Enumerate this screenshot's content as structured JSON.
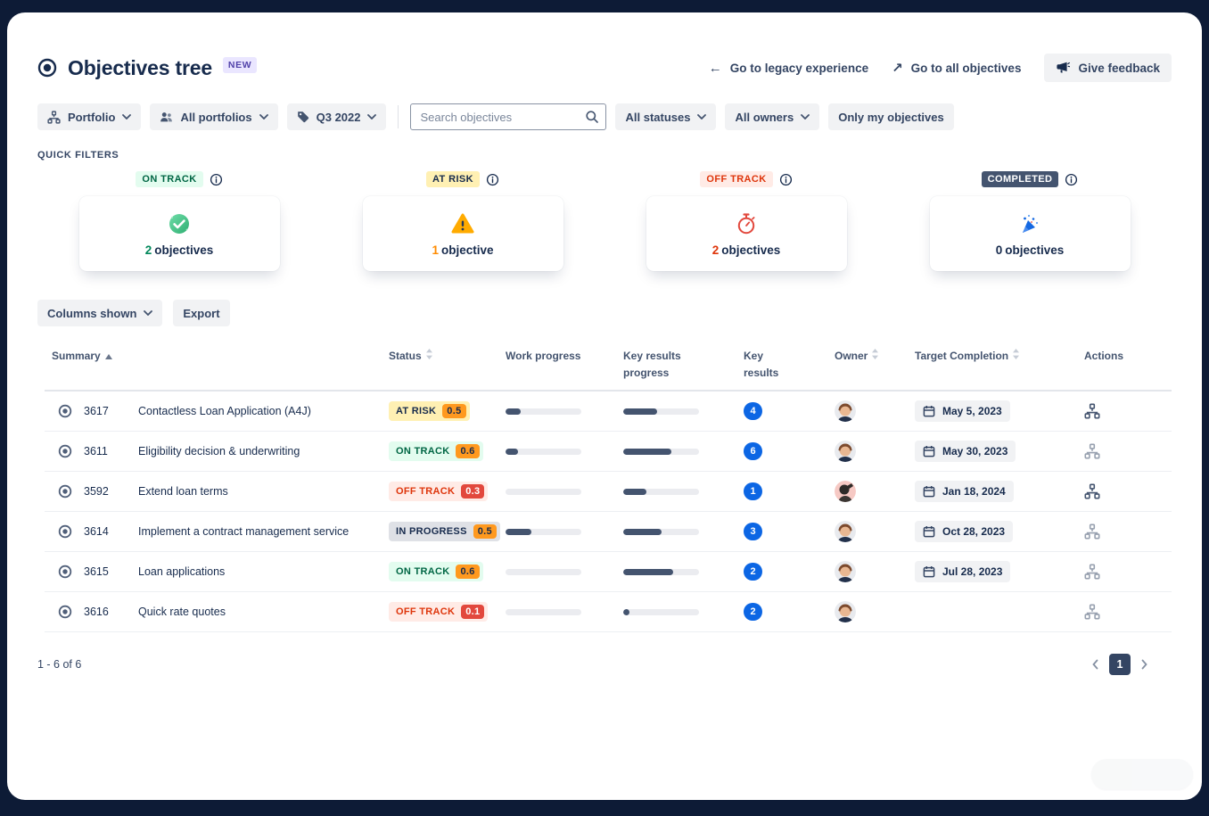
{
  "colors": {
    "frame_bg": "#0D1B36",
    "panel_bg": "#FFFFFF",
    "new_badge_bg": "#EAE6FF",
    "new_badge_fg": "#5243AA",
    "key_results_badge": "#0C66E4",
    "progress_fill": "#44546F",
    "progress_track": "#EBECF0",
    "pagination_current_bg": "#344563",
    "pagination_current_fg": "#FFFFFF"
  },
  "page": {
    "title": "Objectives tree",
    "new_badge": "NEW"
  },
  "header_links": {
    "legacy": "Go to legacy experience",
    "all_objectives": "Go to all objectives",
    "feedback": "Give feedback"
  },
  "filters": {
    "portfolio": "Portfolio",
    "all_portfolios": "All portfolios",
    "quarter": "Q3 2022",
    "search_placeholder": "Search objectives",
    "all_statuses": "All statuses",
    "all_owners": "All owners",
    "only_my": "Only my objectives"
  },
  "quick_filters": {
    "label": "QUICK FILTERS",
    "cards": [
      {
        "status": "ON TRACK",
        "style_key": "ON_TRACK",
        "count": "2",
        "noun": "objectives",
        "count_color": "#00875A",
        "icon": "check"
      },
      {
        "status": "AT RISK",
        "style_key": "AT_RISK",
        "count": "1",
        "noun": "objective",
        "count_color": "#FF8B00",
        "icon": "warning"
      },
      {
        "status": "OFF TRACK",
        "style_key": "OFF_TRACK",
        "count": "2",
        "noun": "objectives",
        "count_color": "#DE350B",
        "icon": "stopwatch"
      },
      {
        "status": "COMPLETED",
        "style_key": "COMPLETED",
        "count": "0",
        "noun": "objectives",
        "count_color": "#172B4D",
        "icon": "party"
      }
    ]
  },
  "status_styles": {
    "ON_TRACK": {
      "bg": "#E3FCEF",
      "fg": "#006644"
    },
    "AT_RISK": {
      "bg": "#FFF0B3",
      "fg": "#172B4D"
    },
    "OFF_TRACK": {
      "bg": "#FFEBE6",
      "fg": "#DE350B"
    },
    "IN_PROGRESS": {
      "bg": "#DFE1E6",
      "fg": "#172B4D"
    },
    "COMPLETED": {
      "bg": "#44546F",
      "fg": "#FFFFFF"
    }
  },
  "value_styles": {
    "orange": {
      "bg": "#FF991F",
      "fg": "#172B4D"
    },
    "red": {
      "bg": "#E2483D",
      "fg": "#FFFFFF"
    }
  },
  "toolbar": {
    "columns_shown": "Columns shown",
    "export": "Export"
  },
  "table": {
    "columns": [
      {
        "label": "Summary",
        "sort": "asc"
      },
      {
        "label": "Status",
        "sort": "both"
      },
      {
        "label": "Work progress",
        "sort": null
      },
      {
        "label": "Key results progress",
        "sort": null
      },
      {
        "label": "Key results",
        "sort": null
      },
      {
        "label": "Owner",
        "sort": "both"
      },
      {
        "label": "Target Completion",
        "sort": "both"
      },
      {
        "label": "Actions",
        "sort": null
      }
    ],
    "rows": [
      {
        "id": "3617",
        "summary": "Contactless Loan Application (A4J)",
        "status": "AT RISK",
        "status_key": "AT_RISK",
        "value": "0.5",
        "value_style": "orange",
        "work": 20,
        "kr": 45,
        "key_results": "4",
        "date": "May 5, 2023",
        "actions_dark": true,
        "avatar": "brown"
      },
      {
        "id": "3611",
        "summary": "Eligibility decision & underwriting",
        "status": "ON TRACK",
        "status_key": "ON_TRACK",
        "value": "0.6",
        "value_style": "orange",
        "work": 17,
        "kr": 64,
        "key_results": "6",
        "date": "May 30, 2023",
        "actions_dark": false,
        "avatar": "brown"
      },
      {
        "id": "3592",
        "summary": "Extend loan terms",
        "status": "OFF TRACK",
        "status_key": "OFF_TRACK",
        "value": "0.3",
        "value_style": "red",
        "work": 0,
        "kr": 31,
        "key_results": "1",
        "date": "Jan 18, 2024",
        "actions_dark": true,
        "avatar": "pink"
      },
      {
        "id": "3614",
        "summary": "Implement a contract management service",
        "status": "IN PROGRESS",
        "status_key": "IN_PROGRESS",
        "value": "0.5",
        "value_style": "orange",
        "work": 34,
        "kr": 50,
        "key_results": "3",
        "date": "Oct 28, 2023",
        "actions_dark": false,
        "avatar": "brown"
      },
      {
        "id": "3615",
        "summary": "Loan applications",
        "status": "ON TRACK",
        "status_key": "ON_TRACK",
        "value": "0.6",
        "value_style": "orange",
        "work": 0,
        "kr": 66,
        "key_results": "2",
        "date": "Jul 28, 2023",
        "actions_dark": false,
        "avatar": "brown"
      },
      {
        "id": "3616",
        "summary": "Quick rate quotes",
        "status": "OFF TRACK",
        "status_key": "OFF_TRACK",
        "value": "0.1",
        "value_style": "red",
        "work": 0,
        "kr": 8,
        "key_results": "2",
        "date": "",
        "actions_dark": false,
        "avatar": "brown"
      }
    ]
  },
  "pagination": {
    "range_label": "1 - 6 of 6",
    "current_page": "1"
  }
}
